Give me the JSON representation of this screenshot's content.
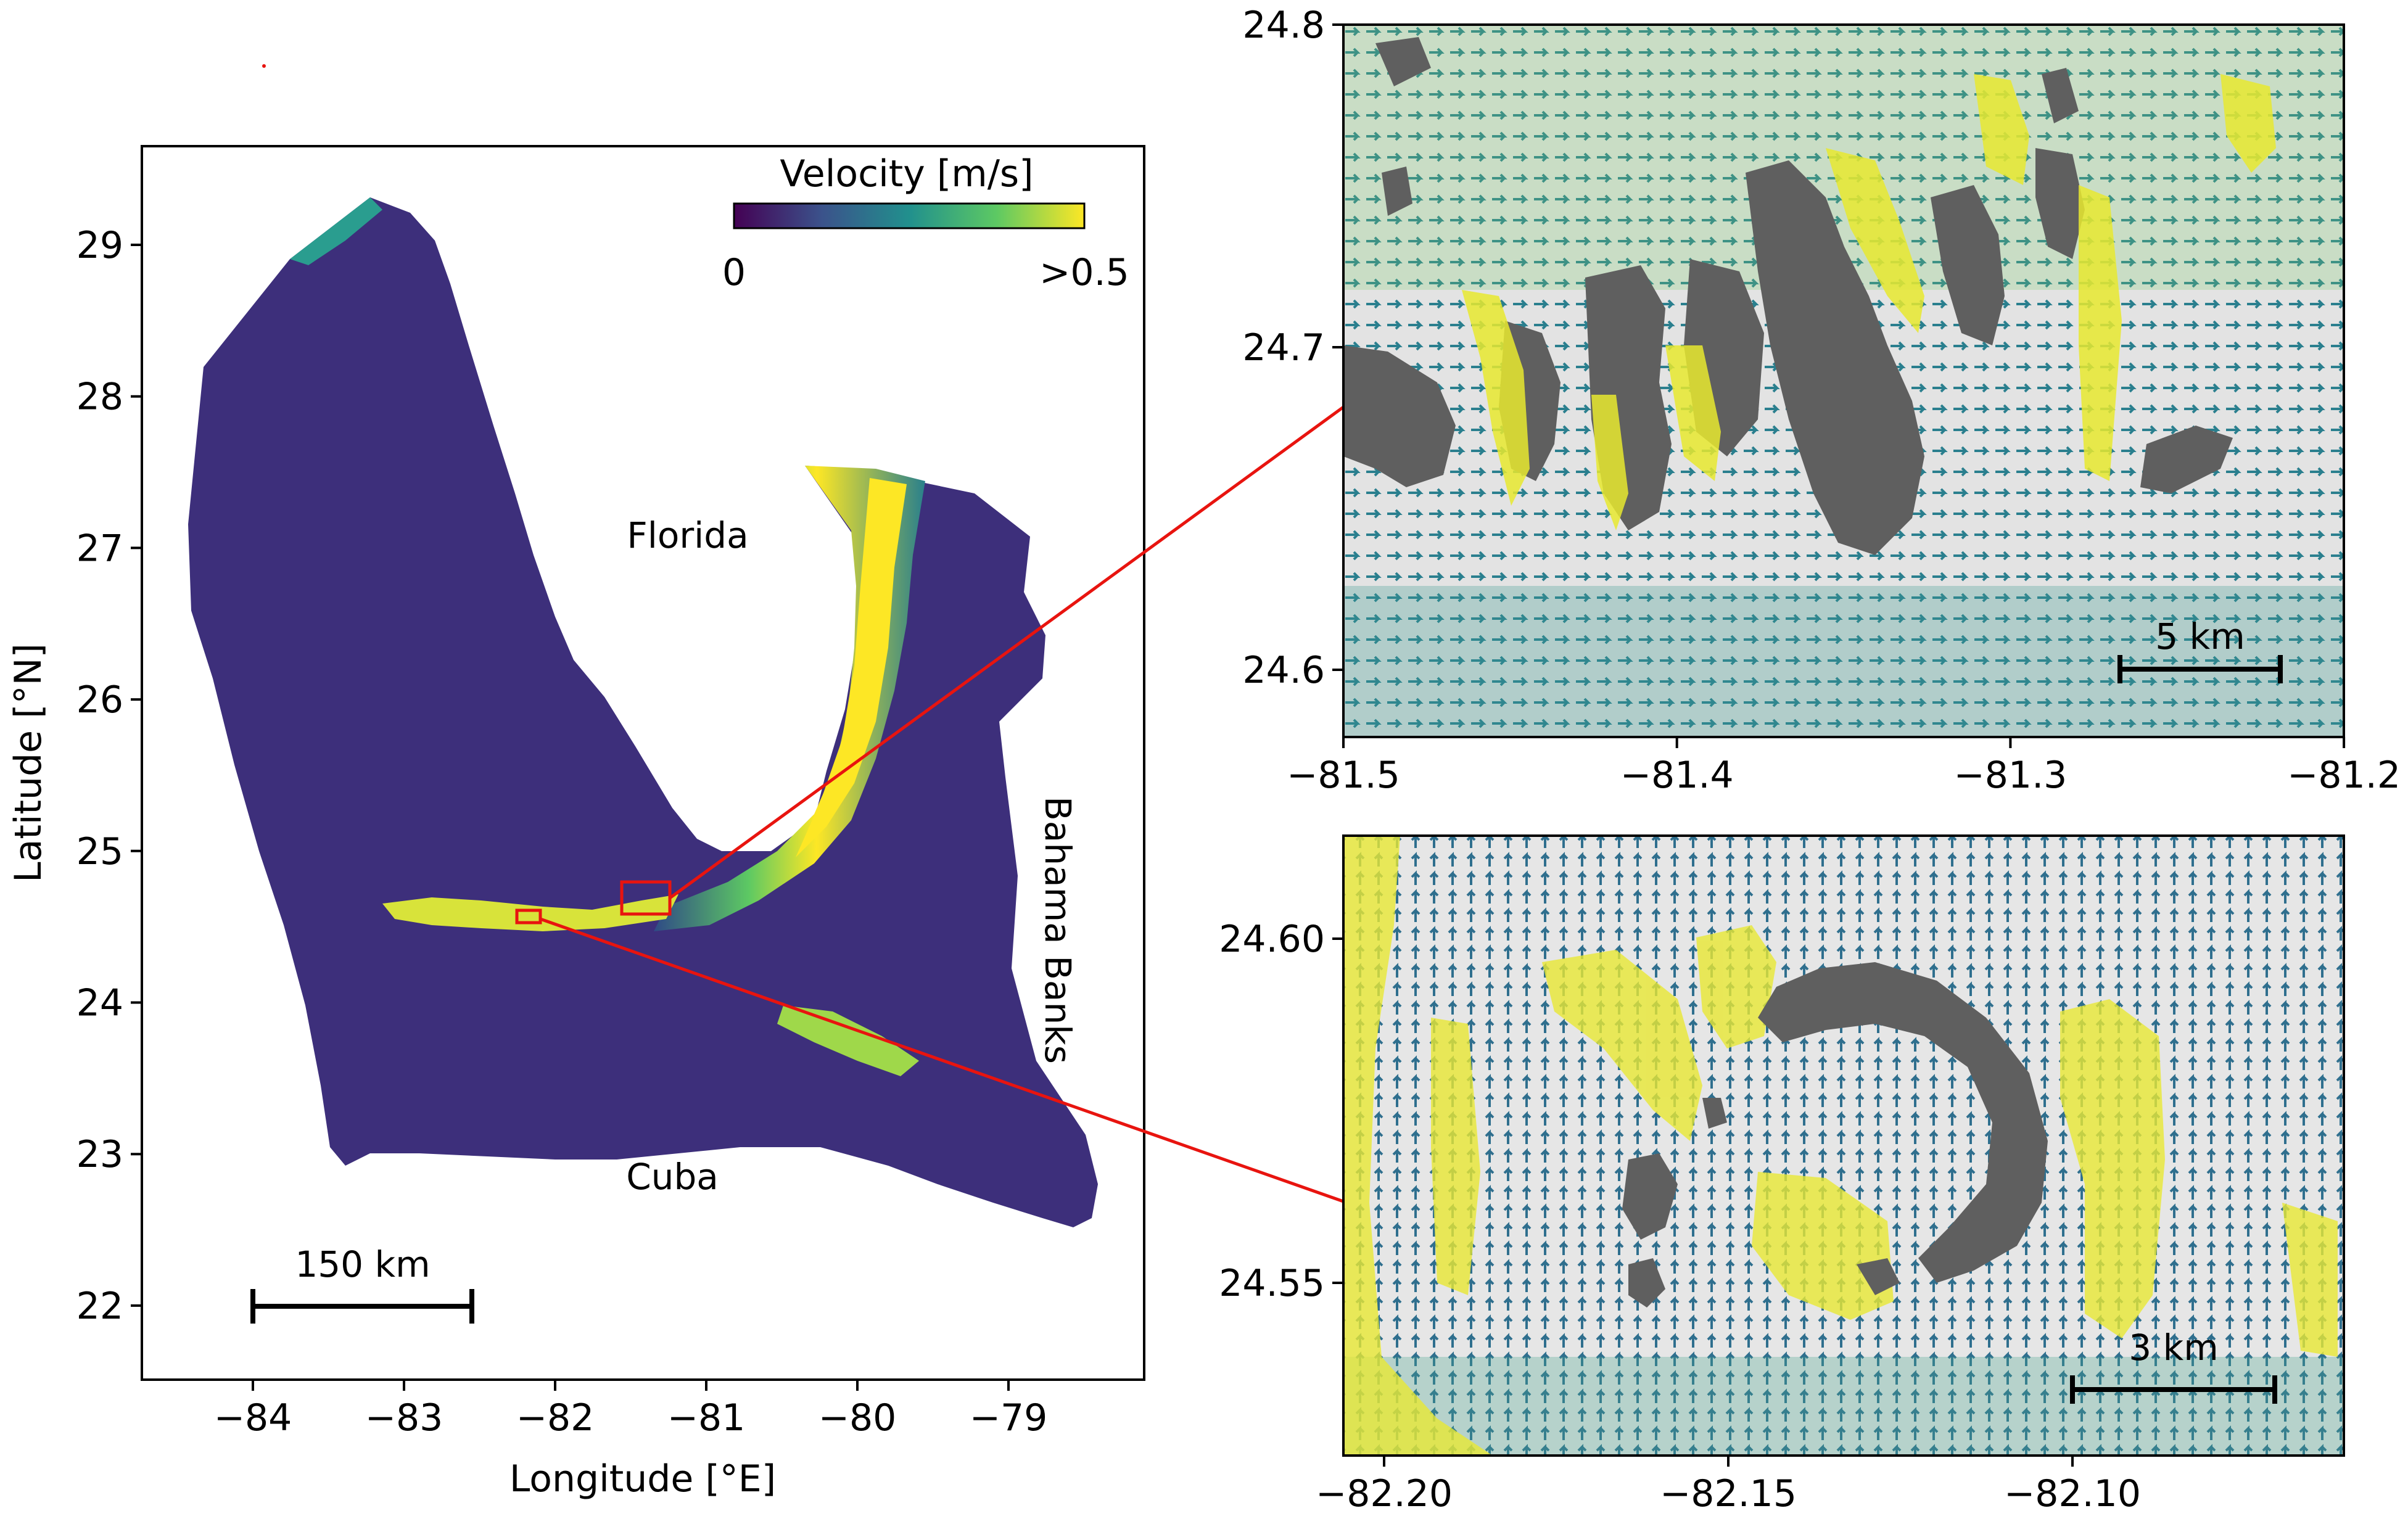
{
  "overview": {
    "x_axis_label": "Longitude [°E]",
    "y_axis_label": "Latitude [°N]",
    "x_ticks": [
      "−84",
      "−83",
      "−82",
      "−81",
      "−80",
      "−79"
    ],
    "y_ticks": [
      "29",
      "28",
      "27",
      "26",
      "25",
      "24",
      "23",
      "22"
    ],
    "places": [
      "Florida",
      "Bahama Banks",
      "Cuba"
    ],
    "scale_bar_label": "150 km",
    "colorbar": {
      "title": "Velocity [m/s]",
      "min_label": "0",
      "max_label": ">0.5"
    }
  },
  "inset_top": {
    "x_ticks": [
      "−81.5",
      "−81.4",
      "−81.3",
      "−81.2"
    ],
    "y_ticks": [
      "24.8",
      "24.7",
      "24.6"
    ],
    "scale_bar_label": "5 km"
  },
  "inset_bottom": {
    "x_ticks": [
      "−82.20",
      "−82.15",
      "−82.10"
    ],
    "y_ticks": [
      "24.60",
      "24.55"
    ],
    "scale_bar_label": "3 km"
  },
  "colors": {
    "ocean_low": "#3b2f7a",
    "mid": "#21908d",
    "high": "#fde725",
    "land": "#5f5f5f",
    "zoom_box": "#e8140f",
    "shallow": "#c8c8c8"
  }
}
